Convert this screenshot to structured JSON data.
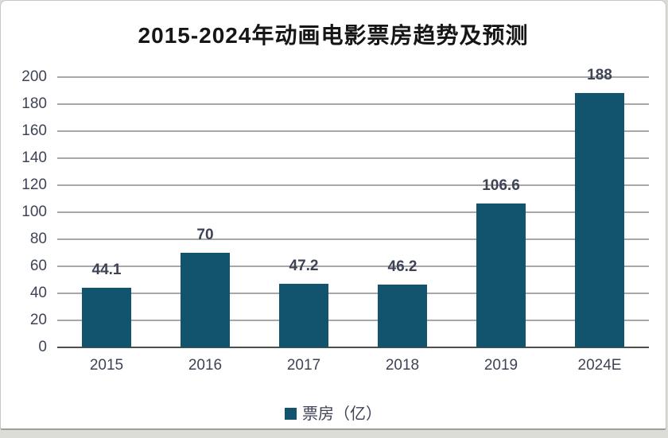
{
  "title": "2015-2024年动画电影票房趋势及预测",
  "legend": {
    "label": "票房（亿）"
  },
  "colors": {
    "bar": "#12536E",
    "gridline": "#A8A8A8",
    "axis_line": "#4D4D4D",
    "tick_text": "#3E4356",
    "title_text": "#161616",
    "card_border": "#C6C6C6"
  },
  "chart_data": {
    "type": "bar",
    "title": "2015-2024年动画电影票房趋势及预测",
    "categories": [
      "2015",
      "2016",
      "2017",
      "2018",
      "2019",
      "2024E"
    ],
    "values": [
      44.1,
      70,
      47.2,
      46.2,
      106.6,
      188
    ],
    "data_labels": [
      "44.1",
      "70",
      "47.2",
      "46.2",
      "106.6",
      "188"
    ],
    "series_name": "票房（亿）",
    "xlabel": "",
    "ylabel": "",
    "ylim": [
      0,
      200
    ],
    "ytick_interval": 20,
    "yticks": [
      0,
      20,
      40,
      60,
      80,
      100,
      120,
      140,
      160,
      180,
      200
    ],
    "grid": true,
    "legend_position": "bottom"
  }
}
